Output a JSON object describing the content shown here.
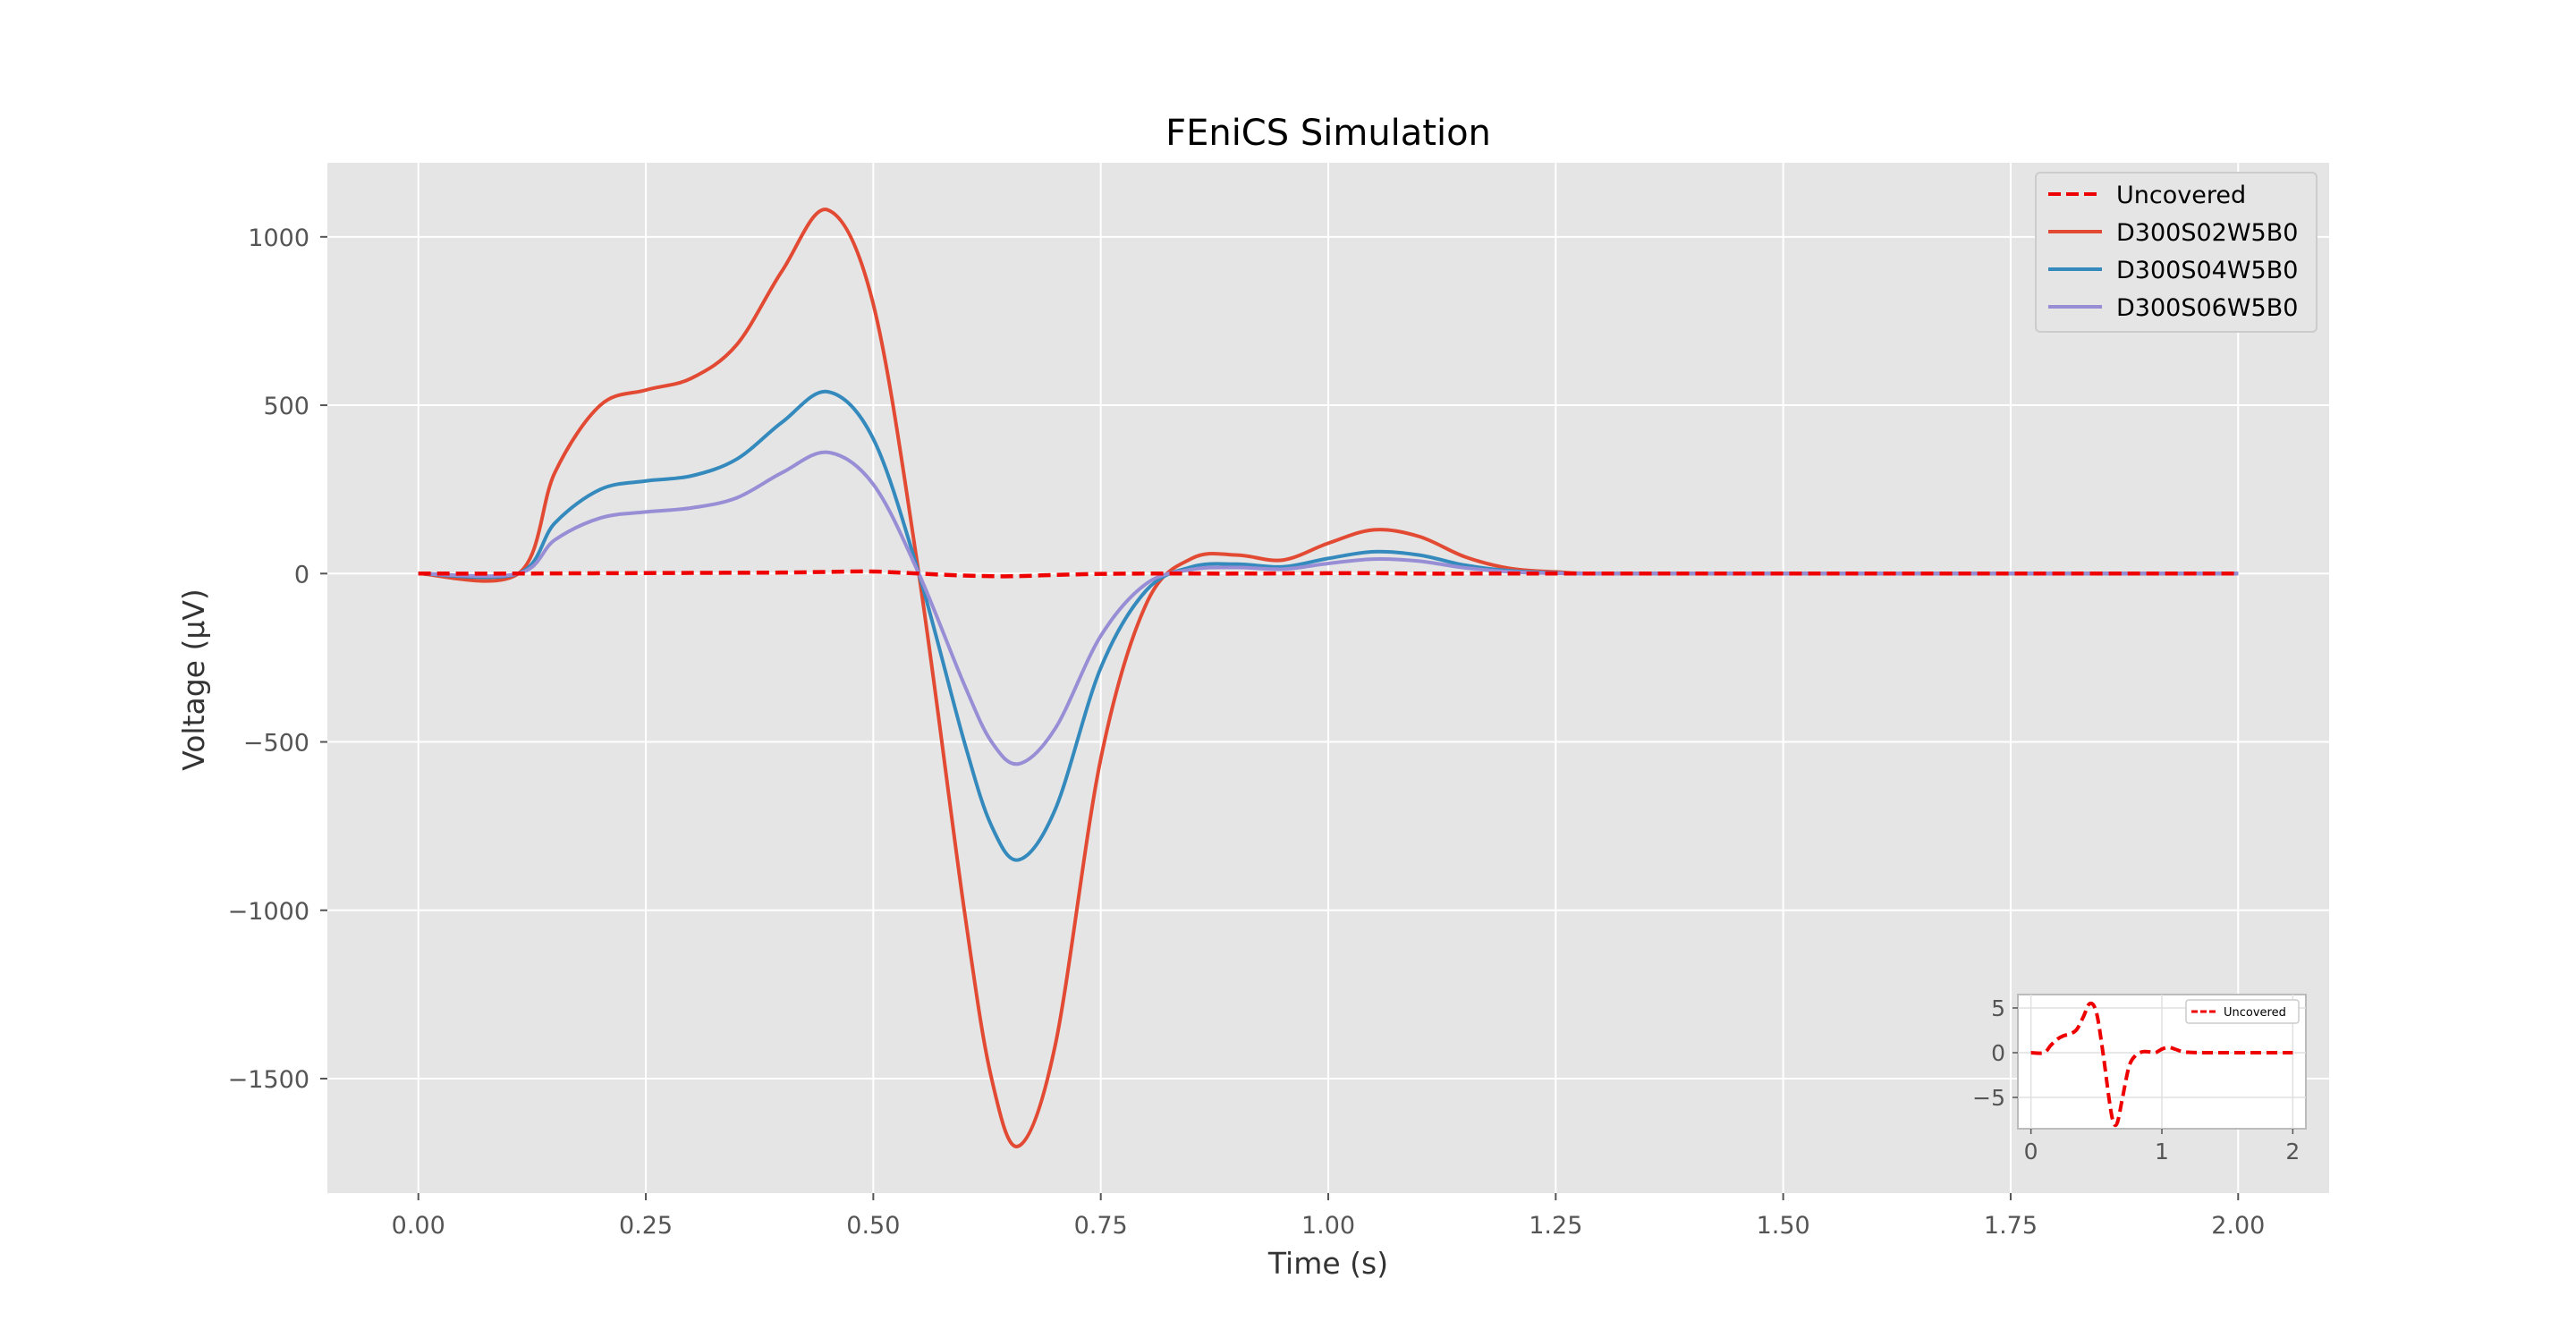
{
  "chart_data": {
    "type": "line",
    "title": "FEniCS Simulation",
    "xlabel": "Time (s)",
    "ylabel": "Voltage (μV)",
    "xlim": [
      -0.1,
      2.1
    ],
    "ylim": [
      -1840,
      1220
    ],
    "xticks": [
      0.0,
      0.25,
      0.5,
      0.75,
      1.0,
      1.25,
      1.5,
      1.75,
      2.0
    ],
    "xtick_labels": [
      "0.00",
      "0.25",
      "0.50",
      "0.75",
      "1.00",
      "1.25",
      "1.50",
      "1.75",
      "2.00"
    ],
    "yticks": [
      1000,
      500,
      0,
      -500,
      -1000,
      -1500
    ],
    "ytick_labels": [
      "1000",
      "500",
      "0",
      "−500",
      "−1000",
      "−1500"
    ],
    "grid": true,
    "background": "#e5e5e5",
    "legend_position": "top-right",
    "series": [
      {
        "name": "Uncovered",
        "color": "#ee0000",
        "style": "dashed",
        "x": [
          0.0,
          0.1,
          0.2,
          0.3,
          0.4,
          0.45,
          0.5,
          0.55,
          0.6,
          0.65,
          0.7,
          0.75,
          0.8,
          0.85,
          0.9,
          1.0,
          1.05,
          1.1,
          1.2,
          1.3,
          1.5,
          1.75,
          2.0
        ],
        "y": [
          0,
          0,
          1,
          2,
          3,
          5,
          6,
          0,
          -6,
          -8,
          -4,
          -1,
          0,
          0,
          0,
          1,
          1,
          0,
          0,
          0,
          0,
          0,
          0
        ]
      },
      {
        "name": "D300S02W5B0",
        "color": "#e24a33",
        "style": "solid",
        "x": [
          0.0,
          0.11,
          0.15,
          0.2,
          0.25,
          0.3,
          0.35,
          0.4,
          0.45,
          0.5,
          0.55,
          0.6,
          0.63,
          0.66,
          0.7,
          0.75,
          0.8,
          0.85,
          0.9,
          0.95,
          1.0,
          1.05,
          1.1,
          1.15,
          1.2,
          1.25,
          1.3,
          1.5,
          2.0
        ],
        "y": [
          0,
          0,
          300,
          500,
          545,
          580,
          680,
          900,
          1080,
          800,
          0,
          -1000,
          -1500,
          -1700,
          -1400,
          -550,
          -90,
          45,
          55,
          40,
          90,
          130,
          110,
          50,
          15,
          5,
          0,
          0,
          0
        ]
      },
      {
        "name": "D300S04W5B0",
        "color": "#348abd",
        "style": "solid",
        "x": [
          0.0,
          0.11,
          0.15,
          0.2,
          0.25,
          0.3,
          0.35,
          0.4,
          0.45,
          0.5,
          0.55,
          0.6,
          0.63,
          0.66,
          0.7,
          0.75,
          0.8,
          0.85,
          0.9,
          0.95,
          1.0,
          1.05,
          1.1,
          1.15,
          1.2,
          1.25,
          1.3,
          1.5,
          2.0
        ],
        "y": [
          0,
          0,
          150,
          250,
          275,
          290,
          340,
          450,
          540,
          400,
          0,
          -500,
          -750,
          -850,
          -700,
          -280,
          -50,
          20,
          28,
          20,
          45,
          65,
          55,
          25,
          8,
          2,
          0,
          0,
          0
        ]
      },
      {
        "name": "D300S06W5B0",
        "color": "#988ed5",
        "style": "solid",
        "x": [
          0.0,
          0.11,
          0.15,
          0.2,
          0.25,
          0.3,
          0.35,
          0.4,
          0.45,
          0.5,
          0.55,
          0.6,
          0.63,
          0.66,
          0.7,
          0.75,
          0.8,
          0.85,
          0.9,
          0.95,
          1.0,
          1.05,
          1.1,
          1.15,
          1.2,
          1.25,
          1.3,
          1.5,
          2.0
        ],
        "y": [
          0,
          0,
          100,
          165,
          183,
          195,
          225,
          300,
          360,
          265,
          0,
          -330,
          -500,
          -565,
          -460,
          -185,
          -30,
          12,
          18,
          13,
          30,
          43,
          37,
          17,
          5,
          1,
          0,
          0,
          0
        ]
      }
    ],
    "inset": {
      "xlim": [
        -0.1,
        2.1
      ],
      "ylim": [
        -8.5,
        6.5
      ],
      "xticks": [
        0,
        1,
        2
      ],
      "xtick_labels": [
        "0",
        "1",
        "2"
      ],
      "yticks": [
        5,
        0,
        -5
      ],
      "ytick_labels": [
        "5",
        "0",
        "−5"
      ],
      "legend_position": "top-right",
      "series": [
        {
          "name": "Uncovered",
          "color": "#ee0000",
          "style": "dashed",
          "x": [
            0.0,
            0.1,
            0.15,
            0.2,
            0.25,
            0.3,
            0.35,
            0.4,
            0.45,
            0.5,
            0.55,
            0.6,
            0.63,
            0.66,
            0.7,
            0.75,
            0.8,
            0.85,
            0.9,
            0.95,
            1.0,
            1.05,
            1.1,
            1.15,
            1.2,
            1.3,
            1.5,
            1.75,
            2.0
          ],
          "y": [
            0,
            0,
            0.8,
            1.5,
            1.9,
            2.1,
            2.6,
            4.0,
            5.5,
            4.5,
            0,
            -5.5,
            -7.8,
            -7.8,
            -5.0,
            -1.5,
            -0.3,
            0.1,
            0.1,
            0,
            0.4,
            0.6,
            0.4,
            0.15,
            0.05,
            0,
            0,
            0,
            0
          ]
        }
      ]
    }
  }
}
